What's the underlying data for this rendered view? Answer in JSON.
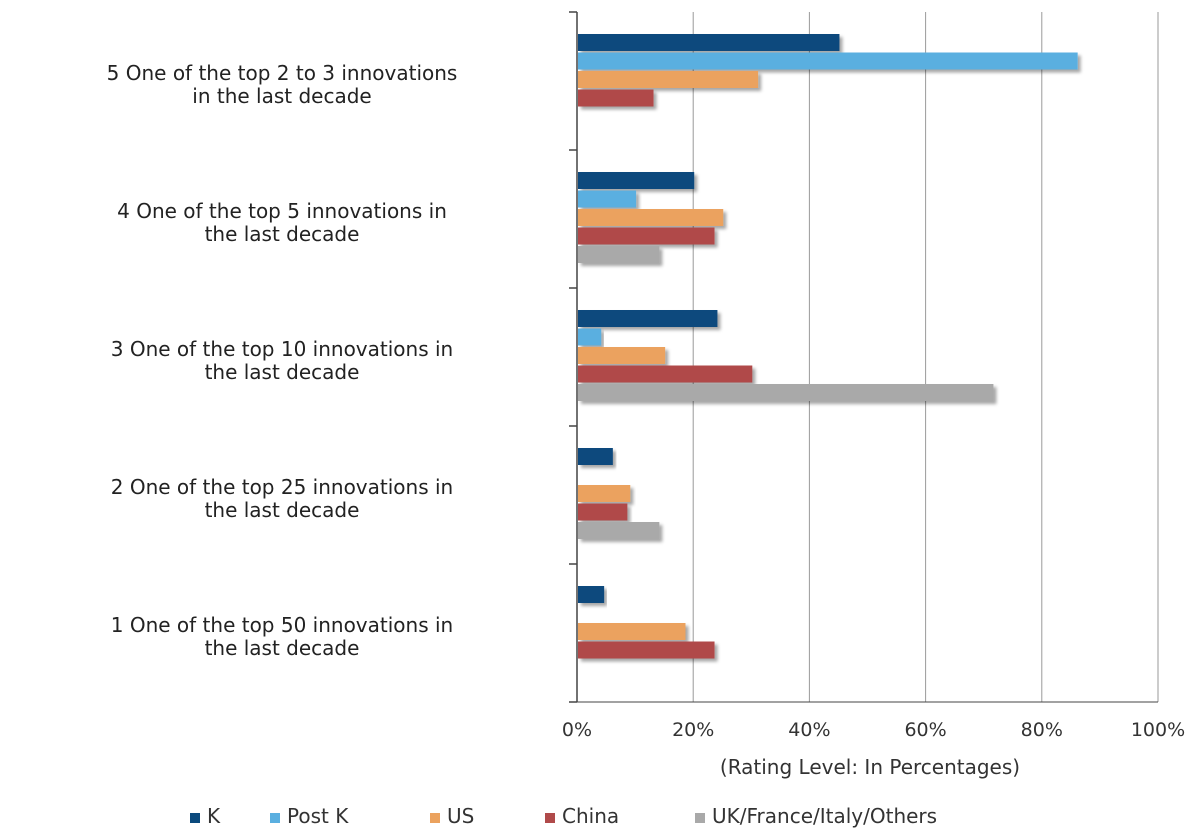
{
  "chart_data": {
    "type": "bar",
    "orientation": "horizontal",
    "categories": [
      [
        "5  One of the top 2 to 3 innovations",
        "in the last decade"
      ],
      [
        "4  One of the top 5 innovations in",
        "the last decade"
      ],
      [
        "3  One of the top 10 innovations in",
        "the last decade"
      ],
      [
        "2   One of the top 25 innovations in",
        "the last decade"
      ],
      [
        "1  One of the top 50 innovations in",
        "the last decade"
      ]
    ],
    "series": [
      {
        "name": "K",
        "color": "#0b4a7d",
        "values": [
          45,
          20,
          24,
          6,
          4.5
        ]
      },
      {
        "name": "Post K",
        "color": "#5aafe0",
        "values": [
          86,
          10,
          4,
          null,
          null
        ]
      },
      {
        "name": "US",
        "color": "#eba25e",
        "values": [
          31,
          25,
          15,
          9,
          18.5
        ]
      },
      {
        "name": "China",
        "color": "#b04a4a",
        "values": [
          13,
          23.5,
          30,
          8.5,
          23.5
        ]
      },
      {
        "name": "UK/France/Italy/Others",
        "color": "#a9a9a9",
        "values": [
          null,
          14,
          71.5,
          14,
          null
        ]
      }
    ],
    "xticks": [
      "0%",
      "20%",
      "40%",
      "60%",
      "80%",
      "100%"
    ],
    "xlim": [
      0,
      100
    ],
    "xlabel": "(Rating Level:  In Percentages)",
    "ylabel": "",
    "title": "",
    "grid": "vertical",
    "legend_position": "bottom"
  }
}
